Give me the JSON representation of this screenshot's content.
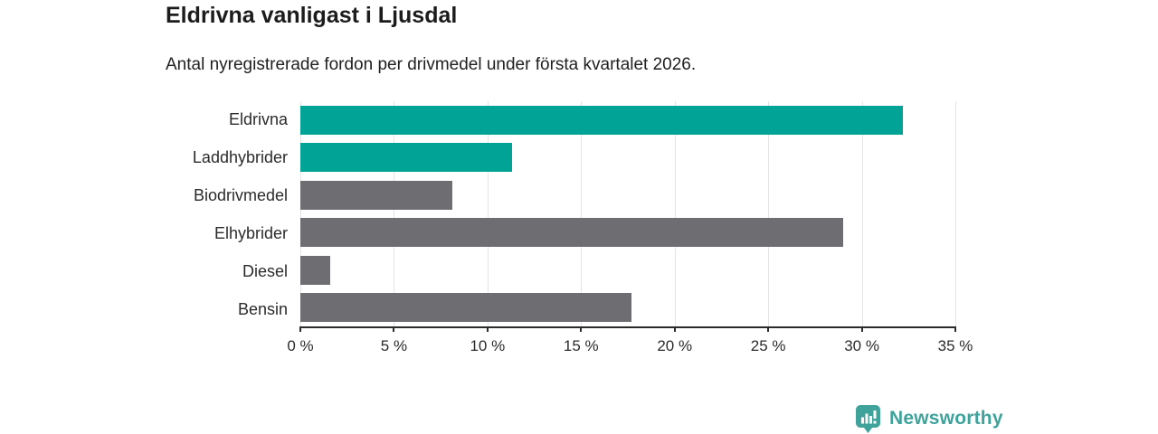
{
  "header": {
    "title": "Eldrivna vanligast i Ljusdal",
    "subtitle": "Antal nyregistrerade fordon per drivmedel under första kvartalet 2026."
  },
  "chart_data": {
    "type": "bar",
    "orientation": "horizontal",
    "title": "Eldrivna vanligast i Ljusdal",
    "subtitle": "Antal nyregistrerade fordon per drivmedel under första kvartalet 2026.",
    "categories": [
      "Eldrivna",
      "Laddhybrider",
      "Biodrivmedel",
      "Elhybrider",
      "Diesel",
      "Bensin"
    ],
    "values": [
      32.2,
      11.3,
      8.1,
      29.0,
      1.6,
      17.7
    ],
    "unit": "%",
    "xlim": [
      0,
      35
    ],
    "x_tick_values": [
      0,
      5,
      10,
      15,
      20,
      25,
      30,
      35
    ],
    "x_tick_labels": [
      "0 %",
      "5 %",
      "10 %",
      "15 %",
      "20 %",
      "25 %",
      "30 %",
      "35 %"
    ],
    "grid": true,
    "legend": "none",
    "bar_colors": [
      "#00a396",
      "#00a396",
      "#6d6d72",
      "#6d6d72",
      "#6d6d72",
      "#6d6d72"
    ]
  },
  "colors": {
    "accent_teal": "#00a396",
    "bar_gray": "#6d6d72",
    "grid": "#e4e4e4",
    "axis": "#2b2b2b",
    "logo_teal": "#3fa39c",
    "background": "#ffffff"
  },
  "branding": {
    "logo_text": "Newsworthy",
    "logo_icon": "newsworthy-speech-bubble-chart-icon"
  }
}
